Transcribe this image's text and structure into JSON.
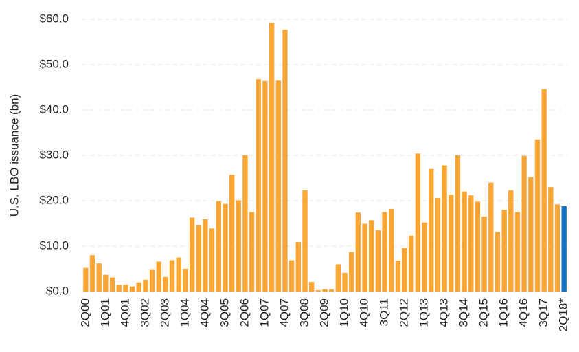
{
  "chart_data": {
    "type": "bar",
    "y_axis_label": "U.S. LBO issuance (bn)",
    "categories": [
      "2Q00",
      null,
      null,
      "1Q01",
      null,
      null,
      "4Q01",
      null,
      null,
      "3Q02",
      null,
      null,
      "2Q03",
      null,
      null,
      "1Q04",
      null,
      null,
      "4Q04",
      null,
      null,
      "3Q05",
      null,
      null,
      "2Q06",
      null,
      null,
      "1Q07",
      null,
      null,
      "4Q07",
      null,
      null,
      "3Q08",
      null,
      null,
      "2Q09",
      null,
      null,
      "1Q10",
      null,
      null,
      "4Q10",
      null,
      null,
      "3Q11",
      null,
      null,
      "2Q12",
      null,
      null,
      "1Q13",
      null,
      null,
      "4Q13",
      null,
      null,
      "3Q14",
      null,
      null,
      "2Q15",
      null,
      null,
      "1Q16",
      null,
      null,
      "4Q16",
      null,
      null,
      "3Q17",
      null,
      null,
      "2Q18*"
    ],
    "values": [
      5.2,
      8.0,
      6.2,
      3.7,
      3.1,
      1.5,
      1.5,
      1.1,
      2.0,
      2.6,
      4.9,
      6.6,
      3.2,
      6.9,
      7.5,
      5.0,
      16.3,
      14.6,
      15.9,
      13.9,
      19.9,
      19.3,
      25.7,
      20.1,
      30.0,
      17.5,
      46.8,
      46.4,
      59.2,
      46.5,
      57.7,
      6.9,
      10.9,
      22.3,
      2.1,
      0.3,
      0.5,
      0.5,
      6.0,
      4.1,
      8.7,
      17.4,
      14.9,
      15.7,
      13.5,
      17.5,
      18.2,
      6.8,
      9.6,
      12.3,
      30.4,
      15.2,
      27.0,
      20.6,
      27.8,
      21.3,
      30.0,
      22.0,
      21.2,
      19.8,
      16.5,
      24.0,
      13.1,
      18.0,
      22.3,
      17.5,
      29.9,
      25.2,
      33.5,
      44.6,
      23.0,
      19.2,
      18.8
    ],
    "colors": [
      "#f9a635",
      "#f9a635",
      "#f9a635",
      "#f9a635",
      "#f9a635",
      "#f9a635",
      "#f9a635",
      "#f9a635",
      "#f9a635",
      "#f9a635",
      "#f9a635",
      "#f9a635",
      "#f9a635",
      "#f9a635",
      "#f9a635",
      "#f9a635",
      "#f9a635",
      "#f9a635",
      "#f9a635",
      "#f9a635",
      "#f9a635",
      "#f9a635",
      "#f9a635",
      "#f9a635",
      "#f9a635",
      "#f9a635",
      "#f9a635",
      "#f9a635",
      "#f9a635",
      "#f9a635",
      "#f9a635",
      "#f9a635",
      "#f9a635",
      "#f9a635",
      "#f9a635",
      "#f9a635",
      "#f9a635",
      "#f9a635",
      "#f9a635",
      "#f9a635",
      "#f9a635",
      "#f9a635",
      "#f9a635",
      "#f9a635",
      "#f9a635",
      "#f9a635",
      "#f9a635",
      "#f9a635",
      "#f9a635",
      "#f9a635",
      "#f9a635",
      "#f9a635",
      "#f9a635",
      "#f9a635",
      "#f9a635",
      "#f9a635",
      "#f9a635",
      "#f9a635",
      "#f9a635",
      "#f9a635",
      "#f9a635",
      "#f9a635",
      "#f9a635",
      "#f9a635",
      "#f9a635",
      "#f9a635",
      "#f9a635",
      "#f9a635",
      "#f9a635",
      "#f9a635",
      "#f9a635",
      "#f9a635",
      "#1170c1"
    ],
    "ylim": [
      0,
      60
    ],
    "yticks": [
      {
        "value": 0,
        "label": "$0.0"
      },
      {
        "value": 10,
        "label": "$10.0"
      },
      {
        "value": 20,
        "label": "$20.0"
      },
      {
        "value": 30,
        "label": "$30.0"
      },
      {
        "value": 40,
        "label": "$40.0"
      },
      {
        "value": 50,
        "label": "$50.0"
      },
      {
        "value": 60,
        "label": "$60.0"
      }
    ],
    "grid": true
  }
}
